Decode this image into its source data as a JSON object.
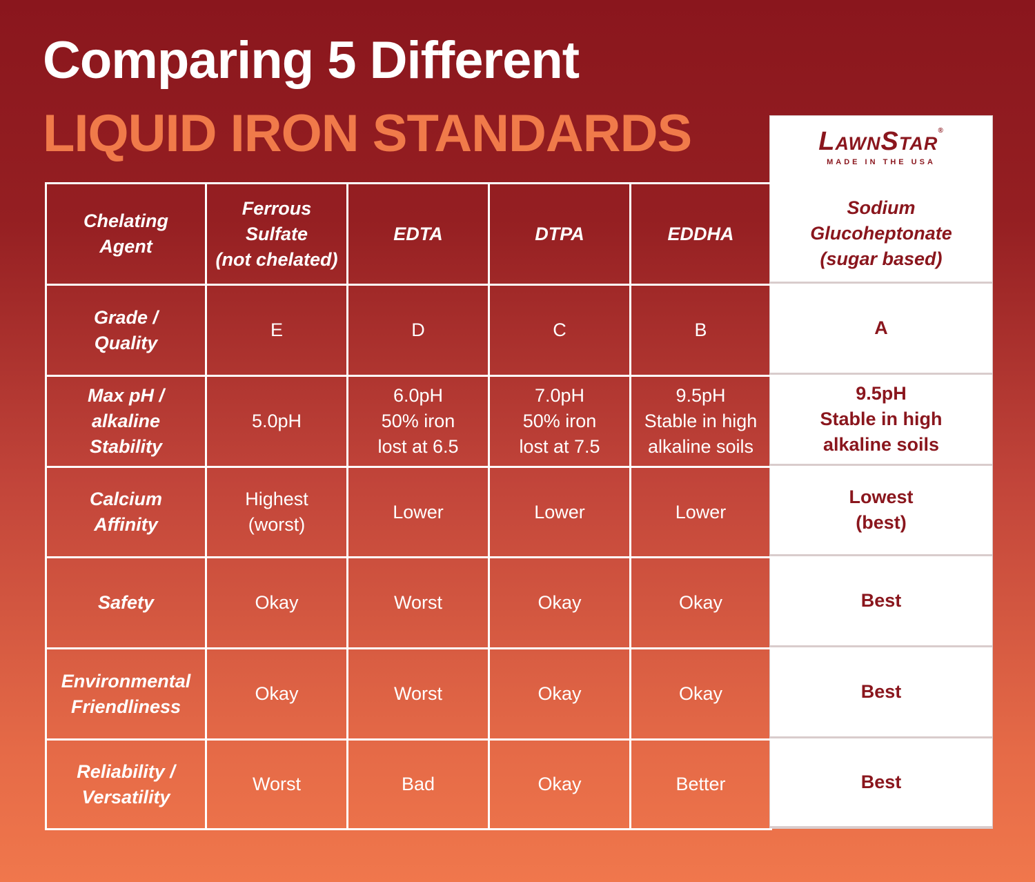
{
  "header": {
    "title": "Comparing 5 Different",
    "subtitle": "LIQUID IRON STANDARDS"
  },
  "brand": {
    "name": "LawnStar",
    "mark": "®",
    "tagline": "MADE IN THE USA"
  },
  "table": {
    "columns": [
      [
        "Chelating",
        "Agent"
      ],
      [
        "Ferrous",
        "Sulfate",
        "(not chelated)"
      ],
      [
        "EDTA"
      ],
      [
        "DTPA"
      ],
      [
        "EDDHA"
      ],
      [
        "Sodium",
        "Glucoheptonate",
        "(sugar based)"
      ]
    ],
    "rows": [
      [
        [
          "Grade /",
          "Quality"
        ],
        [
          "E"
        ],
        [
          "D"
        ],
        [
          "C"
        ],
        [
          "B"
        ],
        [
          "A"
        ]
      ],
      [
        [
          "Max pH /",
          "alkaline",
          "Stability"
        ],
        [
          "5.0pH"
        ],
        [
          "6.0pH",
          "50% iron",
          "lost at 6.5"
        ],
        [
          "7.0pH",
          "50% iron",
          "lost at 7.5"
        ],
        [
          "9.5pH",
          "Stable in high",
          "alkaline soils"
        ],
        [
          "9.5pH",
          "Stable in high",
          "alkaline soils"
        ]
      ],
      [
        [
          "Calcium",
          "Affinity"
        ],
        [
          "Highest",
          "(worst)"
        ],
        [
          "Lower"
        ],
        [
          "Lower"
        ],
        [
          "Lower"
        ],
        [
          "Lowest",
          "(best)"
        ]
      ],
      [
        [
          "Safety"
        ],
        [
          "Okay"
        ],
        [
          "Worst"
        ],
        [
          "Okay"
        ],
        [
          "Okay"
        ],
        [
          "Best"
        ]
      ],
      [
        [
          "Environmental",
          "Friendliness"
        ],
        [
          "Okay"
        ],
        [
          "Worst"
        ],
        [
          "Okay"
        ],
        [
          "Okay"
        ],
        [
          "Best"
        ]
      ],
      [
        [
          "Reliability /",
          "Versatility"
        ],
        [
          "Worst"
        ],
        [
          "Bad"
        ],
        [
          "Okay"
        ],
        [
          "Better"
        ],
        [
          "Best"
        ]
      ]
    ]
  }
}
